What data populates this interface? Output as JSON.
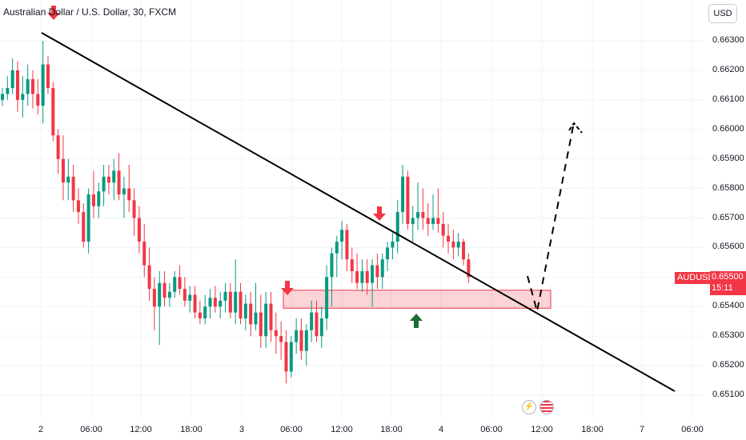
{
  "header": {
    "title": "Australian Dollar / U.S. Dollar, 30, FXCM",
    "currency_button": "USD"
  },
  "price_axis": {
    "ticks": [
      "0.66300",
      "0.66200",
      "0.66100",
      "0.66000",
      "0.65900",
      "0.65800",
      "0.65700",
      "0.65600",
      "0.65500",
      "0.65400",
      "0.65300",
      "0.65200",
      "0.65100"
    ]
  },
  "time_axis": {
    "ticks": [
      "2",
      "06:00",
      "12:00",
      "18:00",
      "3",
      "06:00",
      "12:00",
      "18:00",
      "4",
      "06:00",
      "12:00",
      "18:00",
      "7",
      "06:00"
    ]
  },
  "last_price": {
    "symbol": "AUDUSD",
    "price": "0.65500",
    "countdown": "15:11",
    "color": "#f23645"
  },
  "colors": {
    "up": "#089981",
    "down": "#f23645",
    "trendline": "#000000",
    "zone": "#f23645",
    "buy_arrow": "#1e6b3a"
  },
  "events": {
    "icons": [
      "lightning-icon",
      "us-flag-icon"
    ]
  },
  "chart_data": {
    "type": "candlestick",
    "title": "Australian Dollar / U.S. Dollar, 30, FXCM",
    "ylim": [
      0.6505,
      0.6635
    ],
    "x_labels": [
      "2",
      "06:00",
      "12:00",
      "18:00",
      "3",
      "06:00",
      "12:00",
      "18:00",
      "4",
      "06:00",
      "12:00",
      "18:00",
      "7",
      "06:00"
    ],
    "series": [
      {
        "name": "AUDUSD",
        "ohlc": [
          [
            0.661,
            0.6614,
            0.6608,
            0.6612
          ],
          [
            0.6612,
            0.6618,
            0.661,
            0.6614
          ],
          [
            0.6614,
            0.6624,
            0.6612,
            0.662
          ],
          [
            0.662,
            0.6623,
            0.6606,
            0.661
          ],
          [
            0.661,
            0.6618,
            0.6604,
            0.6612
          ],
          [
            0.6612,
            0.6622,
            0.6608,
            0.6617
          ],
          [
            0.6617,
            0.662,
            0.6607,
            0.6612
          ],
          [
            0.6612,
            0.6617,
            0.6605,
            0.6608
          ],
          [
            0.6608,
            0.663,
            0.6602,
            0.6622
          ],
          [
            0.6622,
            0.6625,
            0.6612,
            0.6614
          ],
          [
            0.6614,
            0.6616,
            0.6596,
            0.6598
          ],
          [
            0.6598,
            0.66,
            0.6585,
            0.659
          ],
          [
            0.659,
            0.6598,
            0.6576,
            0.6582
          ],
          [
            0.6582,
            0.659,
            0.6576,
            0.6584
          ],
          [
            0.6584,
            0.6588,
            0.6572,
            0.6576
          ],
          [
            0.6576,
            0.658,
            0.6568,
            0.6572
          ],
          [
            0.6572,
            0.6575,
            0.656,
            0.6562
          ],
          [
            0.6562,
            0.658,
            0.6558,
            0.6578
          ],
          [
            0.6578,
            0.6586,
            0.657,
            0.6574
          ],
          [
            0.6574,
            0.6582,
            0.657,
            0.6579
          ],
          [
            0.6579,
            0.6588,
            0.6574,
            0.6584
          ],
          [
            0.6584,
            0.6588,
            0.6578,
            0.6582
          ],
          [
            0.6582,
            0.659,
            0.6576,
            0.6586
          ],
          [
            0.6586,
            0.6592,
            0.6576,
            0.6578
          ],
          [
            0.6578,
            0.6584,
            0.657,
            0.658
          ],
          [
            0.658,
            0.6588,
            0.6572,
            0.6576
          ],
          [
            0.6576,
            0.658,
            0.6564,
            0.657
          ],
          [
            0.657,
            0.6574,
            0.6558,
            0.6562
          ],
          [
            0.6562,
            0.6568,
            0.655,
            0.6554
          ],
          [
            0.6554,
            0.656,
            0.6542,
            0.6546
          ],
          [
            0.6546,
            0.655,
            0.6532,
            0.654
          ],
          [
            0.654,
            0.6552,
            0.6527,
            0.6548
          ],
          [
            0.6548,
            0.6552,
            0.654,
            0.6543
          ],
          [
            0.6543,
            0.6548,
            0.654,
            0.6545
          ],
          [
            0.6545,
            0.6552,
            0.6543,
            0.655
          ],
          [
            0.655,
            0.6554,
            0.6544,
            0.6546
          ],
          [
            0.6546,
            0.655,
            0.654,
            0.6542
          ],
          [
            0.6542,
            0.6547,
            0.6538,
            0.6544
          ],
          [
            0.6544,
            0.6547,
            0.6536,
            0.6538
          ],
          [
            0.6538,
            0.6542,
            0.6534,
            0.6536
          ],
          [
            0.6536,
            0.6544,
            0.6534,
            0.654
          ],
          [
            0.654,
            0.6546,
            0.6536,
            0.6543
          ],
          [
            0.6543,
            0.6547,
            0.6538,
            0.654
          ],
          [
            0.654,
            0.6545,
            0.6536,
            0.6542
          ],
          [
            0.6542,
            0.6548,
            0.6538,
            0.6545
          ],
          [
            0.6545,
            0.6548,
            0.6536,
            0.6538
          ],
          [
            0.6538,
            0.6556,
            0.6534,
            0.6545
          ],
          [
            0.6545,
            0.6548,
            0.6534,
            0.6536
          ],
          [
            0.6536,
            0.6544,
            0.6532,
            0.6541
          ],
          [
            0.6541,
            0.6545,
            0.653,
            0.6534
          ],
          [
            0.6534,
            0.6548,
            0.6532,
            0.6538
          ],
          [
            0.6538,
            0.6544,
            0.6526,
            0.653
          ],
          [
            0.653,
            0.6545,
            0.6526,
            0.6541
          ],
          [
            0.6541,
            0.6545,
            0.6528,
            0.6532
          ],
          [
            0.6532,
            0.6538,
            0.6524,
            0.653
          ],
          [
            0.653,
            0.6535,
            0.6522,
            0.6528
          ],
          [
            0.6528,
            0.6532,
            0.6514,
            0.6518
          ],
          [
            0.6518,
            0.653,
            0.6516,
            0.6528
          ],
          [
            0.6528,
            0.6536,
            0.6524,
            0.6532
          ],
          [
            0.6532,
            0.6536,
            0.6522,
            0.6525
          ],
          [
            0.6525,
            0.6534,
            0.652,
            0.6532
          ],
          [
            0.6532,
            0.6542,
            0.6528,
            0.6538
          ],
          [
            0.6538,
            0.6542,
            0.6528,
            0.653
          ],
          [
            0.653,
            0.654,
            0.6526,
            0.6536
          ],
          [
            0.6536,
            0.6554,
            0.6532,
            0.655
          ],
          [
            0.655,
            0.656,
            0.654,
            0.6558
          ],
          [
            0.6558,
            0.6564,
            0.655,
            0.6562
          ],
          [
            0.6562,
            0.6569,
            0.6556,
            0.6566
          ],
          [
            0.6566,
            0.6568,
            0.6552,
            0.6556
          ],
          [
            0.6556,
            0.656,
            0.6548,
            0.6552
          ],
          [
            0.6552,
            0.6558,
            0.6546,
            0.6548
          ],
          [
            0.6548,
            0.6556,
            0.6545,
            0.6552
          ],
          [
            0.6552,
            0.6556,
            0.6544,
            0.6548
          ],
          [
            0.6548,
            0.6556,
            0.654,
            0.6554
          ],
          [
            0.6554,
            0.6558,
            0.6546,
            0.655
          ],
          [
            0.655,
            0.6558,
            0.6546,
            0.6556
          ],
          [
            0.6556,
            0.6562,
            0.6552,
            0.656
          ],
          [
            0.656,
            0.6565,
            0.6556,
            0.6562
          ],
          [
            0.6562,
            0.6576,
            0.6558,
            0.6572
          ],
          [
            0.6572,
            0.6588,
            0.6568,
            0.6584
          ],
          [
            0.6584,
            0.6586,
            0.6566,
            0.6568
          ],
          [
            0.6568,
            0.6574,
            0.6562,
            0.657
          ],
          [
            0.657,
            0.6582,
            0.6566,
            0.6572
          ],
          [
            0.6572,
            0.658,
            0.6566,
            0.657
          ],
          [
            0.657,
            0.6575,
            0.6564,
            0.6568
          ],
          [
            0.6568,
            0.6578,
            0.6566,
            0.657
          ],
          [
            0.657,
            0.658,
            0.6565,
            0.6568
          ],
          [
            0.6568,
            0.6572,
            0.656,
            0.6564
          ],
          [
            0.6564,
            0.6568,
            0.6558,
            0.6562
          ],
          [
            0.6562,
            0.6566,
            0.6556,
            0.656
          ],
          [
            0.656,
            0.6565,
            0.6557,
            0.6562
          ],
          [
            0.6562,
            0.6563,
            0.6554,
            0.6556
          ],
          [
            0.6556,
            0.6558,
            0.6548,
            0.655
          ]
        ]
      }
    ],
    "annotations": {
      "trendline": "descending",
      "support_zone": [
        0.654,
        0.6545
      ],
      "sell_arrows": 3,
      "buy_arrows": 1,
      "projection": "dashed path down to the zone then up toward 0.6601"
    }
  }
}
